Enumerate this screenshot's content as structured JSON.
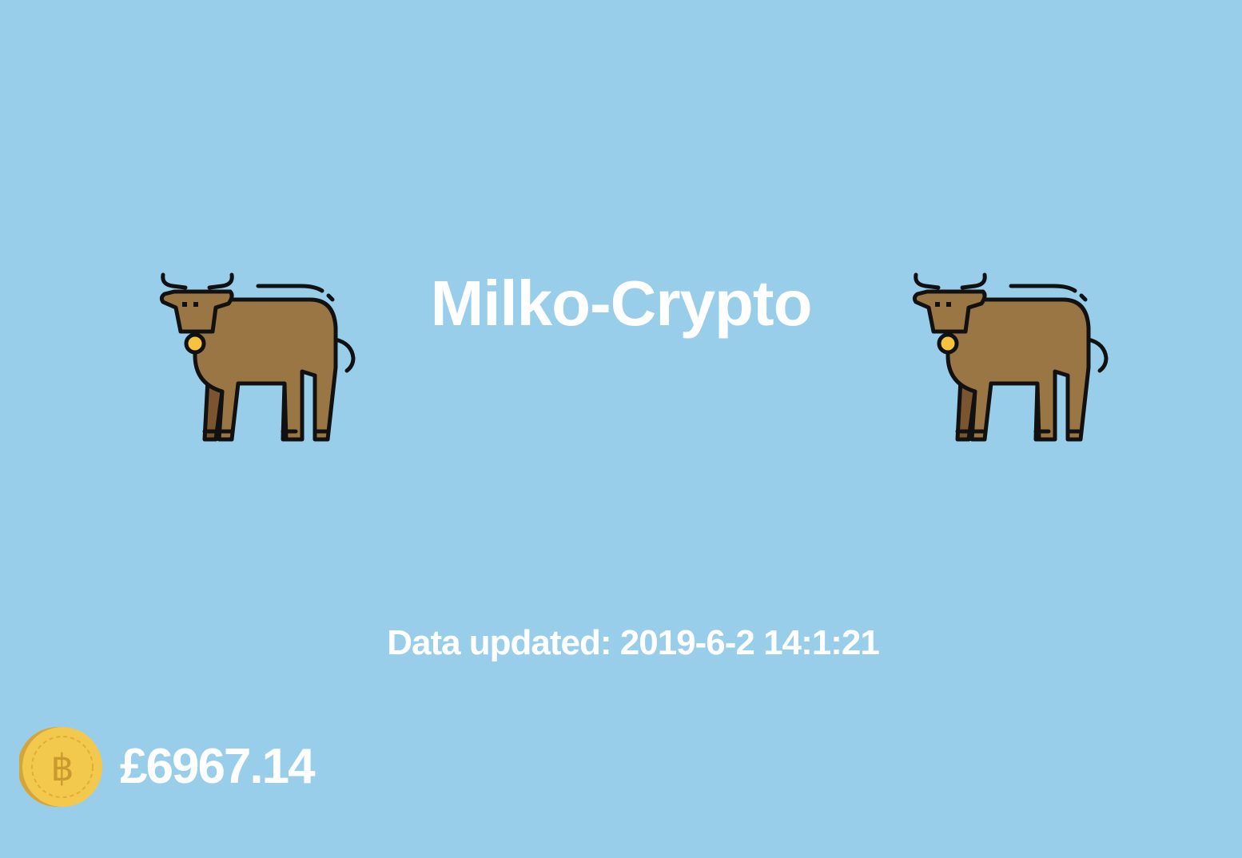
{
  "app": {
    "title": "Milko-Crypto",
    "mascot_icon": "cow-icon"
  },
  "status": {
    "updated_label": "Data updated: 2019-6-2 14:1:21"
  },
  "ticker": {
    "coin_icon": "bitcoin-coin-icon",
    "price": "£6967.14"
  },
  "colors": {
    "background": "#99ceeb",
    "text": "#ffffff",
    "cow_body": "#9b7645",
    "cow_legs": "#7a5530",
    "bell": "#f7c23e",
    "coin": "#f2c94c"
  }
}
